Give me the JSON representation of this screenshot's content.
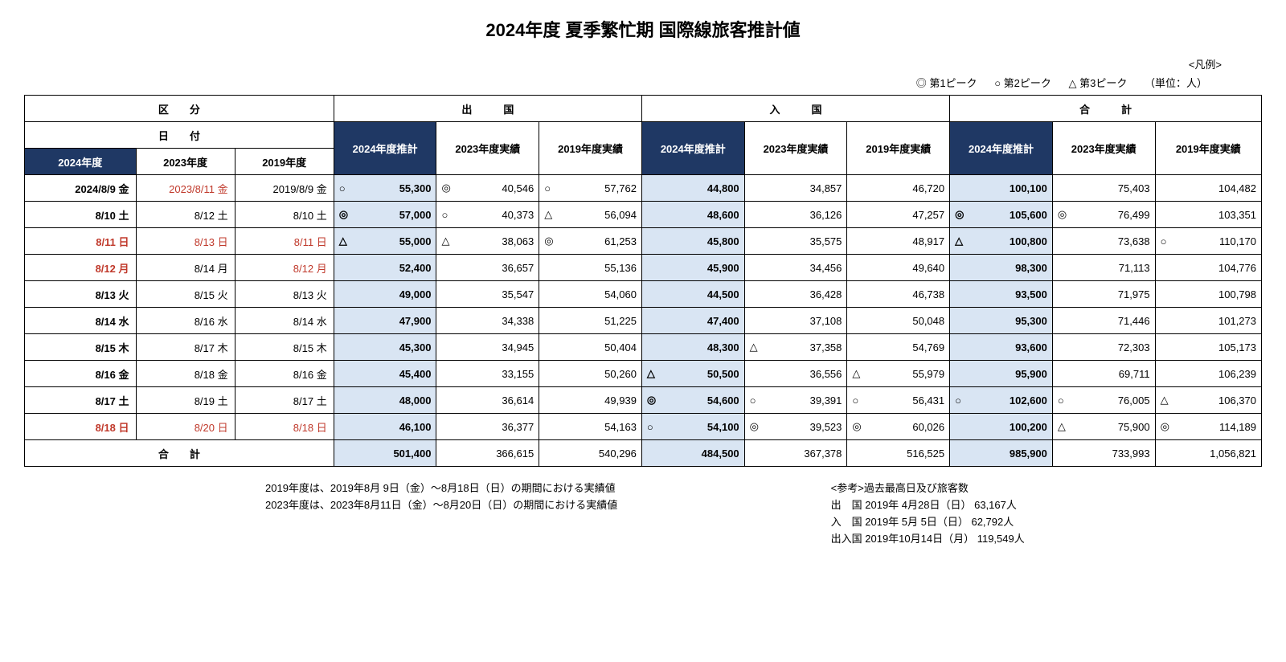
{
  "title": "2024年度 夏季繁忙期 国際線旅客推計値",
  "legend": {
    "label": "<凡例>",
    "peak1": "◎ 第1ピーク",
    "peak2": "○ 第2ピーク",
    "peak3": "△ 第3ピーク",
    "unit": "（単位：人）"
  },
  "headers": {
    "kubun": "区　　分",
    "dep": "出　　　国",
    "arr": "入　　　国",
    "total": "合　　　計",
    "date": "日　　付",
    "y2024est": "2024年度推計",
    "y2023act": "2023年度実績",
    "y2019act": "2019年度実績",
    "y2024": "2024年度",
    "y2023": "2023年度",
    "y2019": "2019年度"
  },
  "rows": [
    {
      "d24": "2024/8/9 金",
      "d24red": false,
      "d23": "2023/8/11 金",
      "d23red": true,
      "d19": "2019/8/9 金",
      "d19red": false,
      "dep": {
        "m24": "○",
        "v24": "55,300",
        "m23": "◎",
        "v23": "40,546",
        "m19": "○",
        "v19": "57,762"
      },
      "arr": {
        "m24": "",
        "v24": "44,800",
        "m23": "",
        "v23": "34,857",
        "m19": "",
        "v19": "46,720"
      },
      "tot": {
        "m24": "",
        "v24": "100,100",
        "m23": "",
        "v23": "75,403",
        "m19": "",
        "v19": "104,482"
      }
    },
    {
      "d24": "8/10 土",
      "d24red": false,
      "d23": "8/12 土",
      "d23red": false,
      "d19": "8/10 土",
      "d19red": false,
      "dep": {
        "m24": "◎",
        "v24": "57,000",
        "m23": "○",
        "v23": "40,373",
        "m19": "△",
        "v19": "56,094"
      },
      "arr": {
        "m24": "",
        "v24": "48,600",
        "m23": "",
        "v23": "36,126",
        "m19": "",
        "v19": "47,257"
      },
      "tot": {
        "m24": "◎",
        "v24": "105,600",
        "m23": "◎",
        "v23": "76,499",
        "m19": "",
        "v19": "103,351"
      }
    },
    {
      "d24": "8/11 日",
      "d24red": true,
      "d23": "8/13 日",
      "d23red": true,
      "d19": "8/11 日",
      "d19red": true,
      "dep": {
        "m24": "△",
        "v24": "55,000",
        "m23": "△",
        "v23": "38,063",
        "m19": "◎",
        "v19": "61,253"
      },
      "arr": {
        "m24": "",
        "v24": "45,800",
        "m23": "",
        "v23": "35,575",
        "m19": "",
        "v19": "48,917"
      },
      "tot": {
        "m24": "△",
        "v24": "100,800",
        "m23": "",
        "v23": "73,638",
        "m19": "○",
        "v19": "110,170"
      }
    },
    {
      "d24": "8/12 月",
      "d24red": true,
      "d23": "8/14 月",
      "d23red": false,
      "d19": "8/12 月",
      "d19red": true,
      "dep": {
        "m24": "",
        "v24": "52,400",
        "m23": "",
        "v23": "36,657",
        "m19": "",
        "v19": "55,136"
      },
      "arr": {
        "m24": "",
        "v24": "45,900",
        "m23": "",
        "v23": "34,456",
        "m19": "",
        "v19": "49,640"
      },
      "tot": {
        "m24": "",
        "v24": "98,300",
        "m23": "",
        "v23": "71,113",
        "m19": "",
        "v19": "104,776"
      }
    },
    {
      "d24": "8/13 火",
      "d24red": false,
      "d23": "8/15 火",
      "d23red": false,
      "d19": "8/13 火",
      "d19red": false,
      "dep": {
        "m24": "",
        "v24": "49,000",
        "m23": "",
        "v23": "35,547",
        "m19": "",
        "v19": "54,060"
      },
      "arr": {
        "m24": "",
        "v24": "44,500",
        "m23": "",
        "v23": "36,428",
        "m19": "",
        "v19": "46,738"
      },
      "tot": {
        "m24": "",
        "v24": "93,500",
        "m23": "",
        "v23": "71,975",
        "m19": "",
        "v19": "100,798"
      }
    },
    {
      "d24": "8/14 水",
      "d24red": false,
      "d23": "8/16 水",
      "d23red": false,
      "d19": "8/14 水",
      "d19red": false,
      "dep": {
        "m24": "",
        "v24": "47,900",
        "m23": "",
        "v23": "34,338",
        "m19": "",
        "v19": "51,225"
      },
      "arr": {
        "m24": "",
        "v24": "47,400",
        "m23": "",
        "v23": "37,108",
        "m19": "",
        "v19": "50,048"
      },
      "tot": {
        "m24": "",
        "v24": "95,300",
        "m23": "",
        "v23": "71,446",
        "m19": "",
        "v19": "101,273"
      }
    },
    {
      "d24": "8/15 木",
      "d24red": false,
      "d23": "8/17 木",
      "d23red": false,
      "d19": "8/15 木",
      "d19red": false,
      "dep": {
        "m24": "",
        "v24": "45,300",
        "m23": "",
        "v23": "34,945",
        "m19": "",
        "v19": "50,404"
      },
      "arr": {
        "m24": "",
        "v24": "48,300",
        "m23": "△",
        "v23": "37,358",
        "m19": "",
        "v19": "54,769"
      },
      "tot": {
        "m24": "",
        "v24": "93,600",
        "m23": "",
        "v23": "72,303",
        "m19": "",
        "v19": "105,173"
      }
    },
    {
      "d24": "8/16 金",
      "d24red": false,
      "d23": "8/18 金",
      "d23red": false,
      "d19": "8/16 金",
      "d19red": false,
      "dep": {
        "m24": "",
        "v24": "45,400",
        "m23": "",
        "v23": "33,155",
        "m19": "",
        "v19": "50,260"
      },
      "arr": {
        "m24": "△",
        "v24": "50,500",
        "m23": "",
        "v23": "36,556",
        "m19": "△",
        "v19": "55,979"
      },
      "tot": {
        "m24": "",
        "v24": "95,900",
        "m23": "",
        "v23": "69,711",
        "m19": "",
        "v19": "106,239"
      }
    },
    {
      "d24": "8/17 土",
      "d24red": false,
      "d23": "8/19 土",
      "d23red": false,
      "d19": "8/17 土",
      "d19red": false,
      "dep": {
        "m24": "",
        "v24": "48,000",
        "m23": "",
        "v23": "36,614",
        "m19": "",
        "v19": "49,939"
      },
      "arr": {
        "m24": "◎",
        "v24": "54,600",
        "m23": "○",
        "v23": "39,391",
        "m19": "○",
        "v19": "56,431"
      },
      "tot": {
        "m24": "○",
        "v24": "102,600",
        "m23": "○",
        "v23": "76,005",
        "m19": "△",
        "v19": "106,370"
      }
    },
    {
      "d24": "8/18 日",
      "d24red": true,
      "d23": "8/20 日",
      "d23red": true,
      "d19": "8/18 日",
      "d19red": true,
      "dep": {
        "m24": "",
        "v24": "46,100",
        "m23": "",
        "v23": "36,377",
        "m19": "",
        "v19": "54,163"
      },
      "arr": {
        "m24": "○",
        "v24": "54,100",
        "m23": "◎",
        "v23": "39,523",
        "m19": "◎",
        "v19": "60,026"
      },
      "tot": {
        "m24": "",
        "v24": "100,200",
        "m23": "△",
        "v23": "75,900",
        "m19": "◎",
        "v19": "114,189"
      }
    }
  ],
  "totals": {
    "label": "合　　計",
    "dep": {
      "v24": "501,400",
      "v23": "366,615",
      "v19": "540,296"
    },
    "arr": {
      "v24": "484,500",
      "v23": "367,378",
      "v19": "516,525"
    },
    "tot": {
      "v24": "985,900",
      "v23": "733,993",
      "v19": "1,056,821"
    }
  },
  "notes": {
    "left1": "2019年度は、2019年8月  9日（金）～8月18日（日）の期間における実績値",
    "left2": "2023年度は、2023年8月11日（金）～8月20日（日）の期間における実績値",
    "rightTitle": "<参考>過去最高日及び旅客数",
    "r1": "出　国  2019年 4月28日（日）    63,167人",
    "r2": "入　国  2019年 5月  5日（日）    62,792人",
    "r3": "出入国  2019年10月14日（月）  119,549人"
  }
}
